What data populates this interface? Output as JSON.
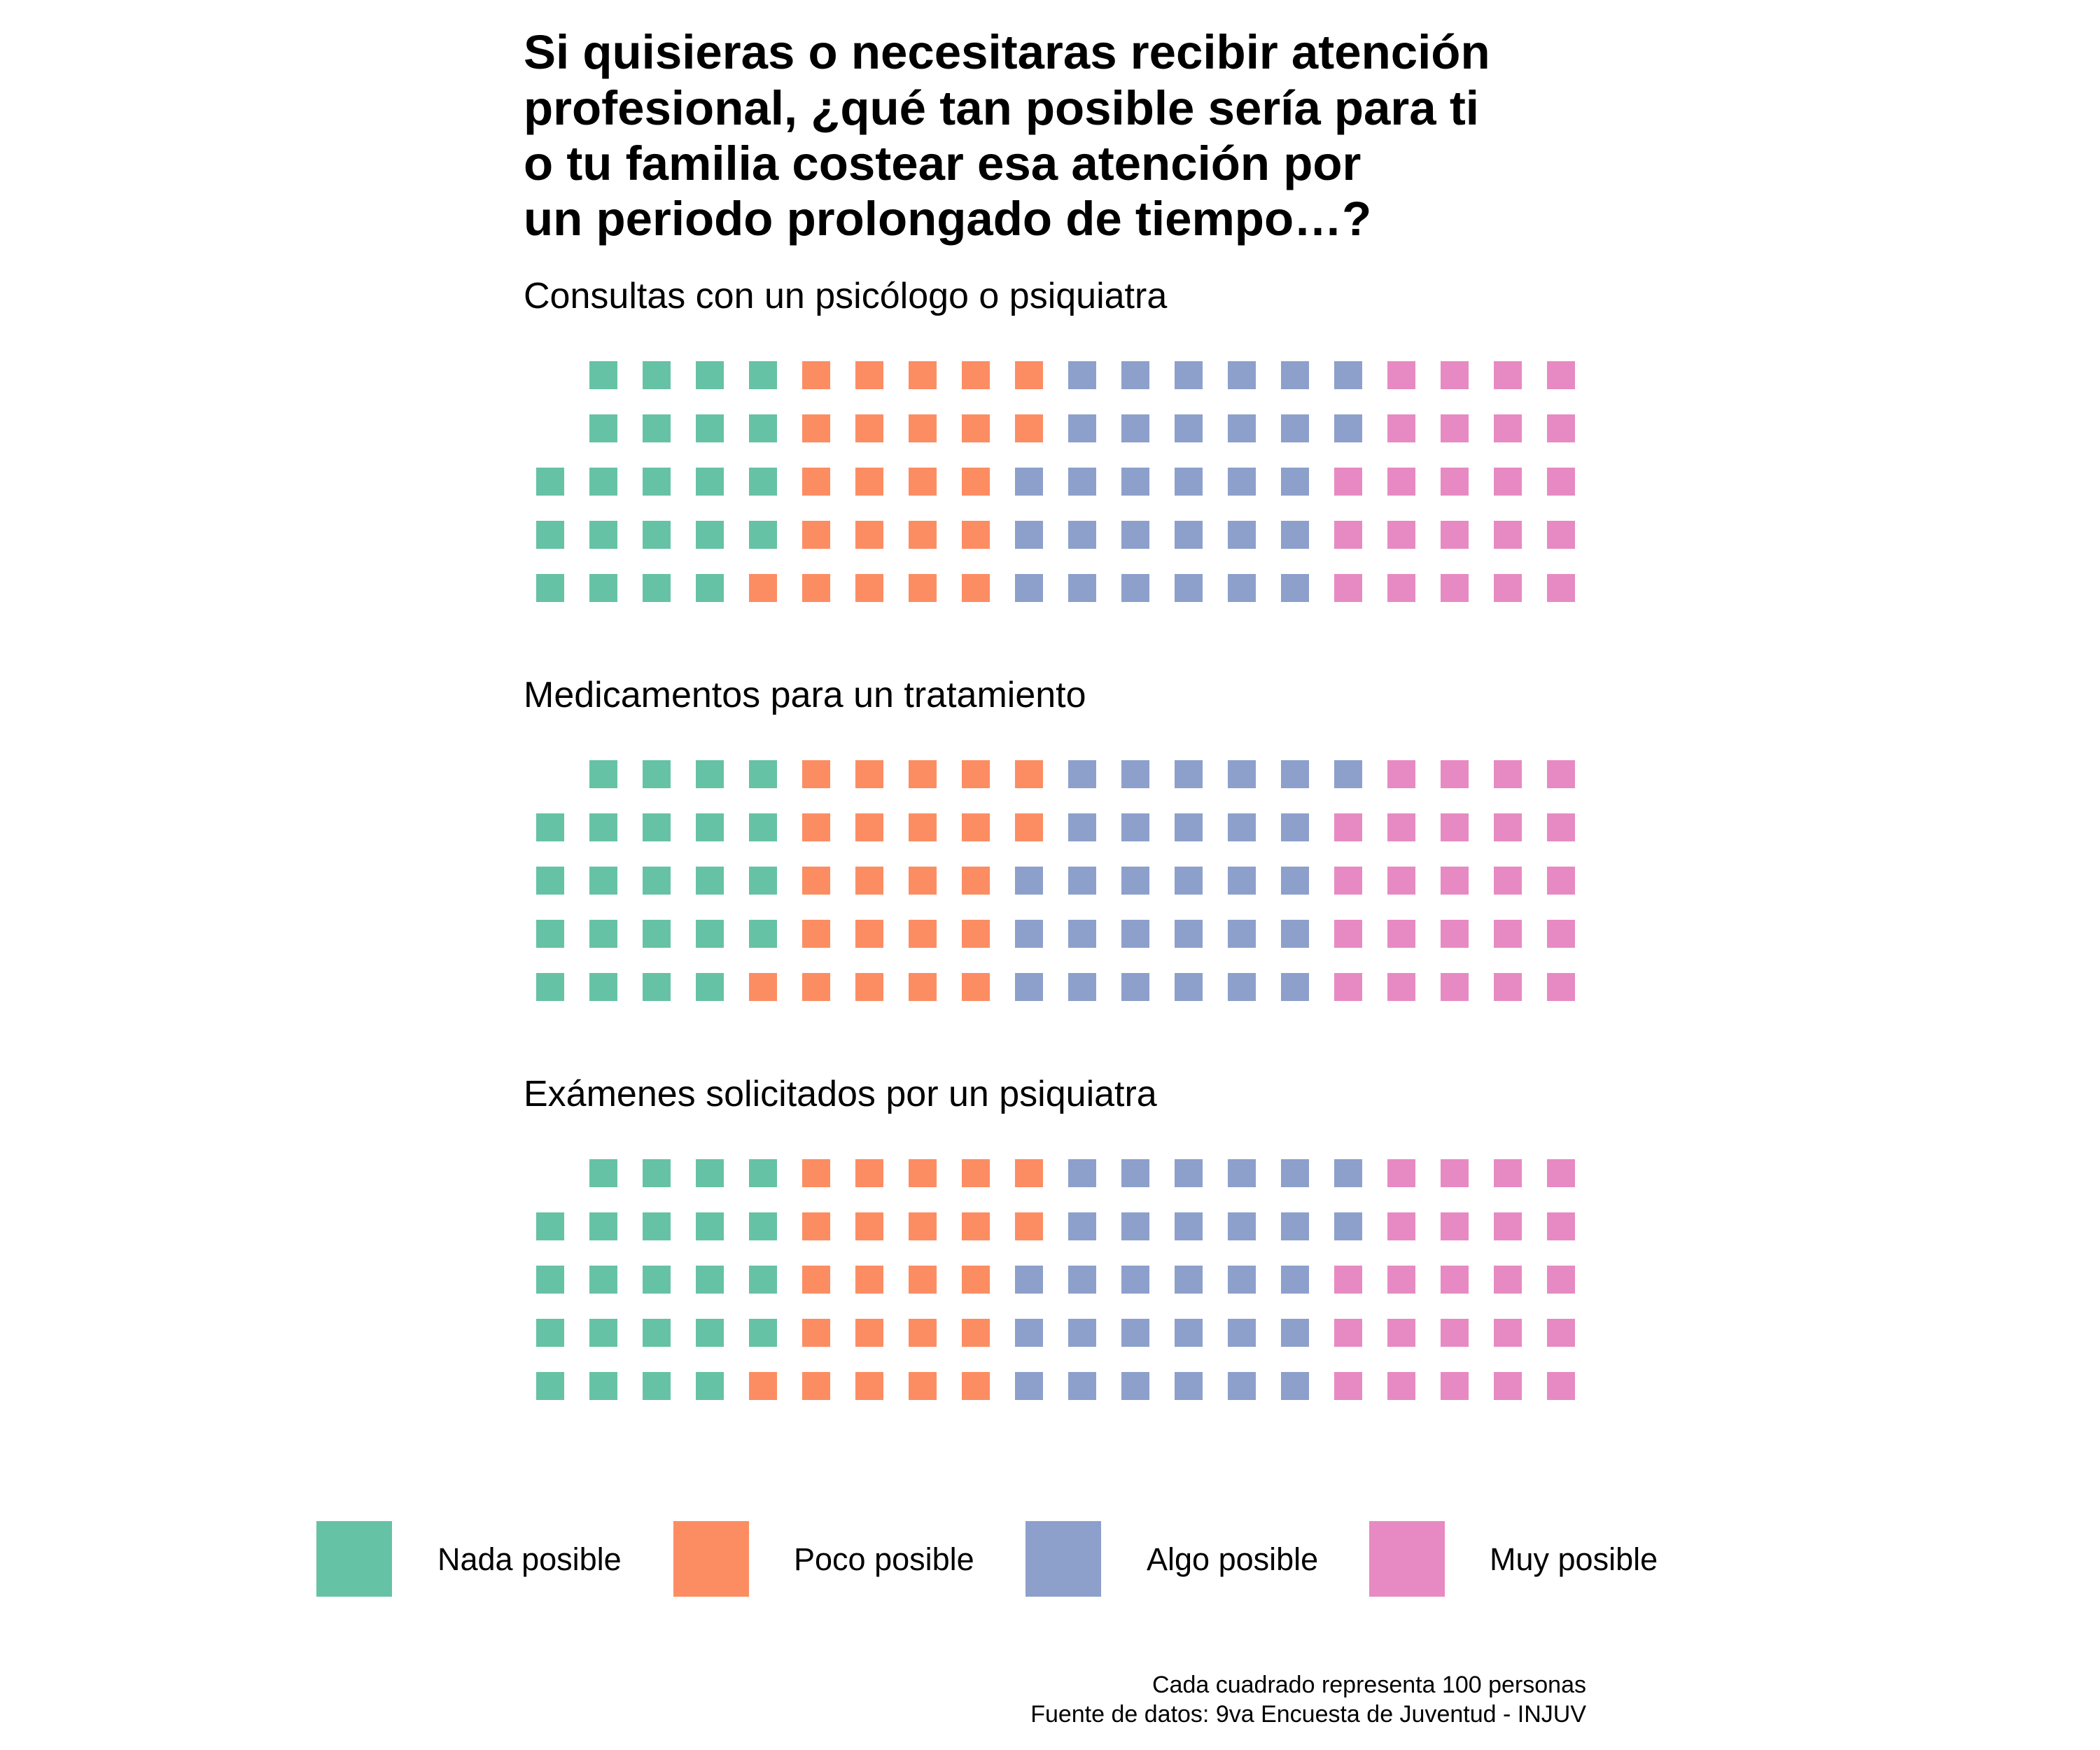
{
  "chart_data": {
    "type": "waffle",
    "title_lines": [
      "Si quisieras o necesitaras recibir atención",
      "profesional, ¿qué tan posible sería para ti",
      "o tu familia costear esa atención por",
      "un periodo prolongado de tiempo…?"
    ],
    "unit_note": "Cada cuadrado representa 100 personas",
    "source_note": "Fuente de datos: 9va Encuesta de Juventud - INJUV",
    "categories": [
      {
        "name": "Nada posible",
        "color": "#66c2a5"
      },
      {
        "name": "Poco posible",
        "color": "#fc8d62"
      },
      {
        "name": "Algo posible",
        "color": "#8da0cb"
      },
      {
        "name": "Muy posible",
        "color": "#e78ac3"
      }
    ],
    "rows_per_column": 5,
    "panels": [
      {
        "title": "Consultas con un psicólogo o psiquiatra",
        "counts": [
          22,
          23,
          30,
          23
        ]
      },
      {
        "title": "Medicamentos para un tratamiento",
        "counts": [
          23,
          23,
          29,
          24
        ]
      },
      {
        "title": "Exámenes solicitados por un psiquiatra",
        "counts": [
          23,
          23,
          30,
          23
        ]
      }
    ]
  }
}
